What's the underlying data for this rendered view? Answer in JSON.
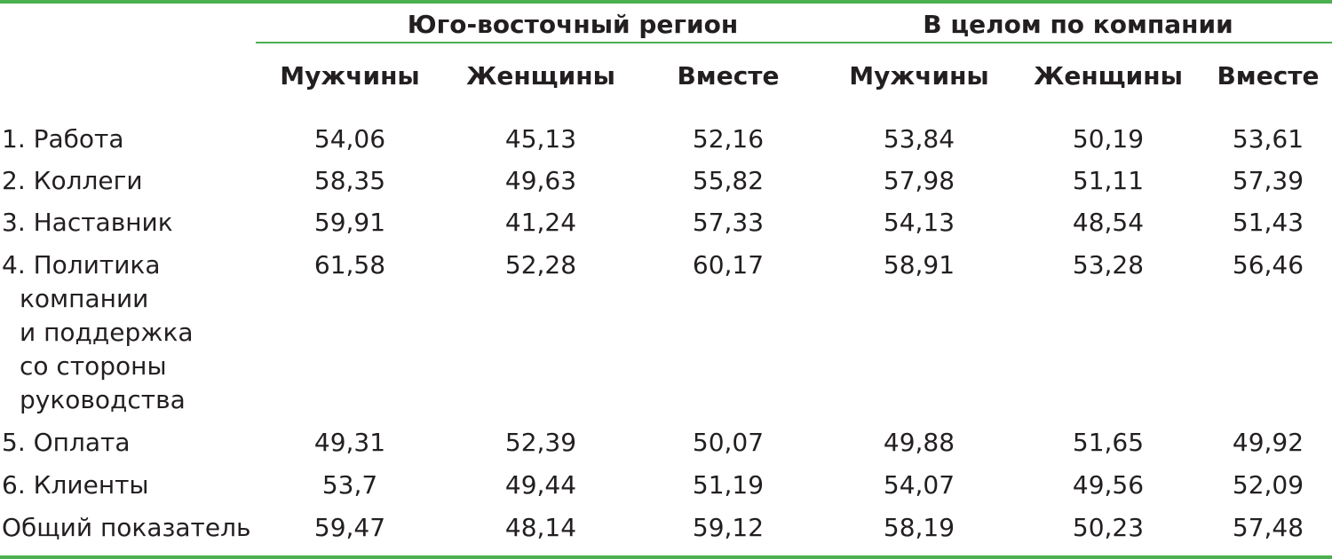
{
  "table": {
    "groups": [
      "Юго-восточный регион",
      "В целом по компании"
    ],
    "columns": [
      "Мужчины",
      "Женщины",
      "Вместе",
      "Мужчины",
      "Женщины",
      "Вместе"
    ],
    "rows": [
      {
        "label": "1. Работа",
        "values": [
          "54,06",
          "45,13",
          "52,16",
          "53,84",
          "50,19",
          "53,61"
        ]
      },
      {
        "label": "2. Коллеги",
        "values": [
          "58,35",
          "49,63",
          "55,82",
          "57,98",
          "51,11",
          "57,39"
        ]
      },
      {
        "label": "3. Наставник",
        "values": [
          "59,91",
          "41,24",
          "57,33",
          "54,13",
          "48,54",
          "51,43"
        ]
      },
      {
        "label_lines": [
          "4. Политика",
          "компании",
          "и поддержка",
          "со стороны",
          "руководства"
        ],
        "values": [
          "61,58",
          "52,28",
          "60,17",
          "58,91",
          "53,28",
          "56,46"
        ]
      },
      {
        "label": "5. Оплата",
        "values": [
          "49,31",
          "52,39",
          "50,07",
          "49,88",
          "51,65",
          "49,92"
        ]
      },
      {
        "label": "6. Клиенты",
        "values": [
          "53,7",
          "49,44",
          "51,19",
          "54,07",
          "49,56",
          "52,09"
        ]
      },
      {
        "label": "Общий показатель",
        "values": [
          "59,47",
          "48,14",
          "59,12",
          "58,19",
          "50,23",
          "57,48"
        ]
      }
    ]
  },
  "colors": {
    "accent": "#4caf50",
    "text": "#231f20"
  }
}
